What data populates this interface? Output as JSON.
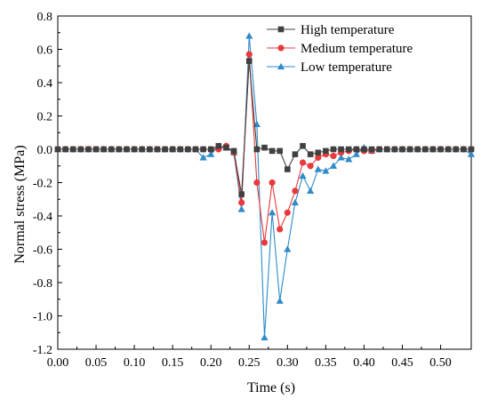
{
  "chart_data": {
    "type": "line",
    "title": "",
    "xlabel": "Time (s)",
    "ylabel": "Normal stress (MPa)",
    "xlim": [
      0.0,
      0.54
    ],
    "ylim": [
      -1.2,
      0.8
    ],
    "xticks": [
      "0.00",
      "0.05",
      "0.10",
      "0.15",
      "0.20",
      "0.25",
      "0.30",
      "0.35",
      "0.40",
      "0.45",
      "0.50"
    ],
    "yticks": [
      "0.8",
      "0.6",
      "0.4",
      "0.2",
      "0.0",
      "-0.2",
      "-0.4",
      "-0.6",
      "-0.8",
      "-1.0",
      "-1.2"
    ],
    "grid": false,
    "legend_position": "top-right",
    "x": [
      0.0,
      0.01,
      0.02,
      0.03,
      0.04,
      0.05,
      0.06,
      0.07,
      0.08,
      0.09,
      0.1,
      0.11,
      0.12,
      0.13,
      0.14,
      0.15,
      0.16,
      0.17,
      0.18,
      0.19,
      0.2,
      0.21,
      0.22,
      0.23,
      0.24,
      0.25,
      0.26,
      0.27,
      0.28,
      0.29,
      0.3,
      0.31,
      0.32,
      0.33,
      0.34,
      0.35,
      0.36,
      0.37,
      0.38,
      0.39,
      0.4,
      0.41,
      0.42,
      0.43,
      0.44,
      0.45,
      0.46,
      0.47,
      0.48,
      0.49,
      0.5,
      0.51,
      0.52,
      0.53,
      0.54
    ],
    "series": [
      {
        "name": "High temperature",
        "color": "#404040",
        "marker": "square",
        "values": [
          0,
          0,
          0,
          0,
          0,
          0,
          0,
          0,
          0,
          0,
          0,
          0,
          0,
          0,
          0,
          0,
          0,
          0,
          0,
          0,
          0,
          0.02,
          0.01,
          -0.01,
          -0.27,
          0.53,
          0.0,
          0.01,
          -0.01,
          -0.01,
          -0.12,
          -0.03,
          0.02,
          -0.03,
          -0.02,
          -0.01,
          0.0,
          0.0,
          0.0,
          0.0,
          0.0,
          0,
          0,
          0,
          0,
          0,
          0,
          0,
          0,
          0,
          0,
          0,
          0,
          0,
          0
        ]
      },
      {
        "name": "Medium temperature",
        "color": "#e8393c",
        "marker": "circle",
        "values": [
          0,
          0,
          0,
          0,
          0,
          0,
          0,
          0,
          0,
          0,
          0,
          0,
          0,
          0,
          0,
          0,
          0,
          0,
          0,
          0,
          0,
          0.0,
          0.02,
          -0.02,
          -0.32,
          0.57,
          -0.2,
          -0.56,
          -0.2,
          -0.48,
          -0.38,
          -0.25,
          -0.08,
          -0.1,
          -0.05,
          -0.03,
          -0.04,
          -0.02,
          -0.01,
          0.0,
          -0.01,
          -0.01,
          0.0,
          0,
          0,
          0,
          0,
          0,
          0,
          0,
          0,
          0,
          0,
          0,
          0
        ]
      },
      {
        "name": "Low temperature",
        "color": "#2f8ac8",
        "marker": "triangle",
        "values": [
          0,
          0,
          0,
          0,
          0,
          0,
          0,
          0,
          0,
          0,
          0,
          0,
          0,
          0,
          0,
          0,
          0,
          0,
          0,
          -0.05,
          -0.03,
          0.02,
          0.01,
          -0.02,
          -0.36,
          0.68,
          0.15,
          -1.13,
          -0.38,
          -0.91,
          -0.6,
          -0.32,
          -0.16,
          -0.25,
          -0.12,
          -0.13,
          -0.1,
          -0.05,
          -0.06,
          -0.03,
          0.01,
          -0.01,
          0.0,
          0,
          0,
          0,
          0,
          0,
          0,
          0,
          0,
          0,
          0,
          0,
          -0.03
        ]
      }
    ]
  }
}
